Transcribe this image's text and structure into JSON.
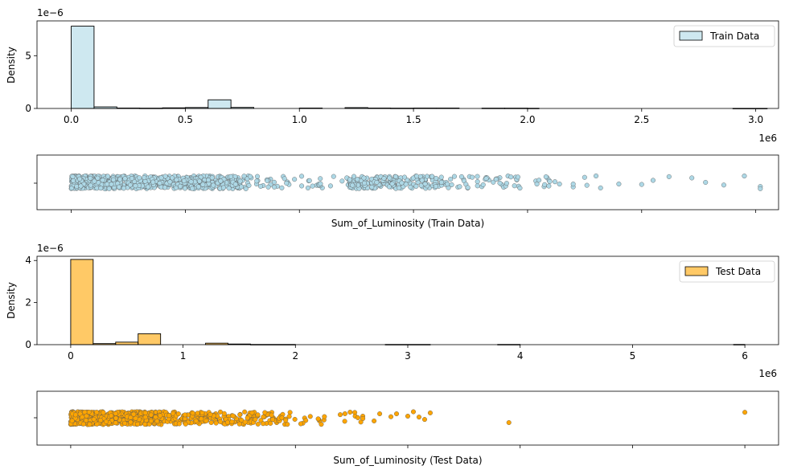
{
  "chart_data": [
    {
      "type": "histogram",
      "ylabel": "Density",
      "offset_label": "1e−6",
      "x_offset_label": "1e6",
      "legend": {
        "label": "Train Data",
        "placement": "top-right"
      },
      "color": "#add8e6",
      "bar_alpha": 0.6,
      "xlim": [
        -0.15,
        3.1
      ],
      "ylim": [
        0,
        8.3
      ],
      "xticks": [
        0,
        0.5,
        1.0,
        1.5,
        2.0,
        2.5,
        3.0
      ],
      "xtick_labels": [
        "0.0",
        "0.5",
        "1.0",
        "1.5",
        "2.0",
        "2.5",
        "3.0"
      ],
      "yticks": [
        0,
        5
      ],
      "ytick_labels": [
        "0",
        "5"
      ],
      "bin_width": 0.1,
      "bins": [
        {
          "x0": 0.0,
          "x1": 0.1,
          "y": 7.8
        },
        {
          "x0": 0.1,
          "x1": 0.2,
          "y": 0.15
        },
        {
          "x0": 0.2,
          "x1": 0.3,
          "y": 0.04
        },
        {
          "x0": 0.3,
          "x1": 0.4,
          "y": 0.03
        },
        {
          "x0": 0.4,
          "x1": 0.5,
          "y": 0.06
        },
        {
          "x0": 0.5,
          "x1": 0.6,
          "y": 0.09
        },
        {
          "x0": 0.6,
          "x1": 0.7,
          "y": 0.82
        },
        {
          "x0": 0.7,
          "x1": 0.8,
          "y": 0.1
        },
        {
          "x0": 1.0,
          "x1": 1.1,
          "y": 0.04
        },
        {
          "x0": 1.2,
          "x1": 1.3,
          "y": 0.08
        },
        {
          "x0": 1.3,
          "x1": 1.4,
          "y": 0.04
        },
        {
          "x0": 1.4,
          "x1": 1.5,
          "y": 0.03
        },
        {
          "x0": 1.5,
          "x1": 1.6,
          "y": 0.04
        },
        {
          "x0": 1.6,
          "x1": 1.7,
          "y": 0.04
        },
        {
          "x0": 1.8,
          "x1": 1.9,
          "y": 0.03
        },
        {
          "x0": 1.9,
          "x1": 2.0,
          "y": 0.03
        },
        {
          "x0": 2.0,
          "x1": 2.05,
          "y": 0.02
        },
        {
          "x0": 2.9,
          "x1": 3.05,
          "y": 0.01
        }
      ]
    },
    {
      "type": "scatter",
      "xlabel": "Sum_of_Luminosity (Train Data)",
      "color": "#add8e6",
      "edge_color": "#555555",
      "xlim": [
        -0.15,
        3.1
      ],
      "xticks": [
        0,
        0.5,
        1.0,
        1.5,
        2.0,
        2.5,
        3.0
      ],
      "dense_ranges": [
        [
          0,
          0.74,
          700
        ],
        [
          0.74,
          1.25,
          60
        ],
        [
          1.22,
          1.62,
          180
        ],
        [
          1.62,
          2.1,
          60
        ]
      ],
      "points": [
        2.2,
        2.3,
        2.25,
        2.32,
        2.4,
        2.5,
        2.55,
        2.62,
        2.72,
        2.78,
        2.86,
        2.95,
        3.02,
        3.02,
        2.2,
        2.26,
        2.05,
        2.12,
        2.14
      ]
    },
    {
      "type": "histogram",
      "ylabel": "Density",
      "offset_label": "1e−6",
      "x_offset_label": "1e6",
      "legend": {
        "label": "Test Data",
        "placement": "top-right"
      },
      "color": "#ffa500",
      "bar_alpha": 0.6,
      "xlim": [
        -0.3,
        6.3
      ],
      "ylim": [
        0,
        4.2
      ],
      "xticks": [
        0,
        1,
        2,
        3,
        4,
        5,
        6
      ],
      "xtick_labels": [
        "0",
        "1",
        "2",
        "3",
        "4",
        "5",
        "6"
      ],
      "yticks": [
        0,
        2,
        4
      ],
      "ytick_labels": [
        "0",
        "2",
        "4"
      ],
      "bin_width": 0.2,
      "bins": [
        {
          "x0": 0.0,
          "x1": 0.2,
          "y": 4.05
        },
        {
          "x0": 0.2,
          "x1": 0.4,
          "y": 0.05
        },
        {
          "x0": 0.4,
          "x1": 0.6,
          "y": 0.12
        },
        {
          "x0": 0.6,
          "x1": 0.8,
          "y": 0.52
        },
        {
          "x0": 1.2,
          "x1": 1.4,
          "y": 0.07
        },
        {
          "x0": 1.4,
          "x1": 1.6,
          "y": 0.03
        },
        {
          "x0": 1.6,
          "x1": 2.0,
          "y": 0.01
        },
        {
          "x0": 2.8,
          "x1": 3.2,
          "y": 0.01
        },
        {
          "x0": 3.8,
          "x1": 4.0,
          "y": 0.01
        },
        {
          "x0": 5.9,
          "x1": 6.0,
          "y": 0.01
        }
      ]
    },
    {
      "type": "scatter",
      "xlabel": "Sum_of_Luminosity (Test Data)",
      "color": "#ffa500",
      "edge_color": "#555555",
      "xlim": [
        -0.3,
        6.3
      ],
      "xticks": [
        0,
        1,
        2,
        3,
        4,
        5,
        6
      ],
      "dense_ranges": [
        [
          0,
          0.75,
          550
        ],
        [
          0.75,
          1.85,
          220
        ],
        [
          1.85,
          2.6,
          35
        ]
      ],
      "points": [
        2.6,
        2.75,
        2.85,
        3.0,
        3.05,
        3.1,
        3.15,
        3.2,
        2.9,
        2.7,
        3.9,
        6.0
      ]
    }
  ]
}
